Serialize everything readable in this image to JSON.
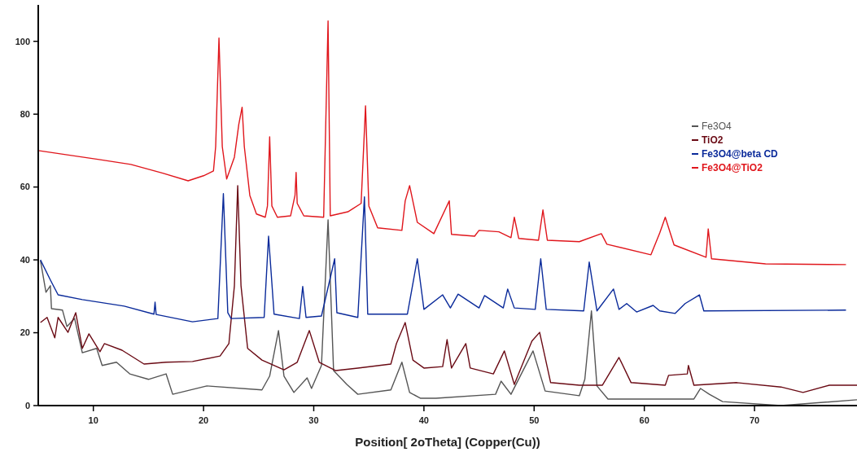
{
  "chart_data": {
    "type": "line",
    "xlabel": "Position[ 2oTheta] (Copper(Cu))",
    "xlim": [
      5,
      79.3
    ],
    "xticks": [
      10,
      20,
      30,
      40,
      50,
      60,
      70
    ],
    "ylim": [
      0,
      110
    ],
    "yticks": [
      0,
      20,
      40,
      60,
      80,
      100
    ],
    "legend": "top right",
    "grid": false,
    "marker": "none",
    "line_style": "solid",
    "series": [
      {
        "name": "Fe3O4",
        "color": "#555555",
        "x": [
          5.2,
          5.7,
          6.1,
          6.2,
          7.2,
          7.6,
          8.3,
          9.0,
          10.3,
          10.8,
          12.1,
          13.3,
          15.0,
          16.6,
          17.2,
          20.3,
          25.3,
          26.0,
          26.8,
          27.3,
          28.2,
          29.4,
          29.8,
          30.7,
          31.3,
          31.8,
          33.0,
          34.0,
          37.0,
          37.5,
          38.0,
          38.7,
          39.7,
          41.1,
          46.5,
          47.0,
          47.9,
          49.9,
          51.0,
          54.1,
          54.6,
          55.2,
          55.7,
          56.7,
          64.5,
          65.1,
          65.9,
          67.1,
          72.4,
          79.3
        ],
        "values": [
          39.8,
          31.1,
          32.9,
          26.6,
          26.2,
          21.7,
          23.9,
          14.5,
          15.7,
          11.0,
          11.9,
          8.7,
          7.2,
          8.7,
          3.1,
          5.4,
          4.3,
          8.1,
          20.6,
          8.1,
          3.6,
          7.6,
          4.7,
          11.0,
          51.0,
          9.6,
          5.8,
          3.1,
          4.3,
          8.1,
          11.9,
          3.6,
          2.0,
          2.0,
          3.1,
          6.7,
          3.1,
          15.0,
          4.0,
          2.7,
          7.2,
          26.0,
          5.4,
          1.8,
          1.8,
          4.7,
          3.1,
          1.1,
          0,
          1.6
        ]
      },
      {
        "name": "TiO2",
        "color": "#6a0a14",
        "x": [
          5.2,
          5.8,
          6.5,
          6.8,
          7.7,
          8.4,
          9.0,
          9.6,
          10.6,
          11.0,
          12.6,
          14.6,
          16.6,
          19.0,
          21.5,
          22.3,
          22.8,
          23.1,
          23.4,
          24.0,
          25.3,
          27.3,
          28.5,
          29.6,
          30.5,
          32.0,
          34.0,
          37.0,
          37.5,
          38.3,
          39.0,
          40.0,
          41.7,
          42.1,
          42.5,
          43.8,
          44.2,
          46.3,
          47.3,
          48.2,
          49.8,
          50.5,
          51.5,
          54.1,
          56.2,
          57.7,
          58.8,
          61.9,
          62.2,
          63.9,
          64.0,
          64.5,
          68.4,
          72.4,
          74.4,
          76.8,
          79.3
        ],
        "values": [
          22.8,
          24.2,
          18.6,
          24.2,
          20.1,
          25.5,
          15.7,
          19.7,
          14.8,
          17.0,
          15.2,
          11.4,
          11.9,
          12.1,
          13.6,
          17.0,
          32.9,
          60.4,
          32.9,
          15.7,
          12.5,
          9.8,
          11.9,
          20.6,
          11.9,
          9.6,
          10.3,
          11.4,
          17.0,
          22.8,
          12.5,
          10.3,
          10.7,
          18.1,
          10.3,
          17.0,
          10.3,
          8.7,
          15.0,
          5.8,
          17.7,
          20.1,
          6.3,
          5.6,
          5.6,
          13.2,
          6.3,
          5.6,
          8.3,
          8.7,
          11.0,
          5.6,
          6.3,
          5.1,
          3.6,
          5.6,
          5.6
        ]
      },
      {
        "name": "Fe3O4@beta CD",
        "color": "#0a2a9a",
        "x": [
          5.2,
          6.1,
          6.8,
          9.0,
          12.8,
          15.5,
          15.6,
          15.7,
          19.0,
          21.3,
          21.8,
          22.2,
          22.5,
          25.5,
          25.9,
          26.4,
          28.7,
          29.0,
          29.3,
          30.7,
          31.9,
          32.1,
          34.0,
          34.6,
          34.9,
          38.5,
          39.4,
          40.0,
          41.7,
          42.4,
          43.1,
          45.0,
          45.5,
          47.2,
          47.6,
          48.2,
          50.1,
          50.6,
          51.1,
          54.5,
          55.0,
          55.7,
          57.2,
          57.7,
          58.4,
          59.3,
          60.8,
          61.4,
          62.8,
          63.7,
          65.0,
          65.4,
          78.3
        ],
        "values": [
          40.0,
          34.5,
          30.4,
          29.1,
          27.3,
          25.1,
          28.4,
          25.0,
          23.0,
          23.9,
          58.2,
          25.5,
          23.9,
          24.2,
          46.5,
          25.1,
          23.9,
          32.7,
          24.2,
          24.6,
          40.3,
          25.5,
          24.2,
          57.3,
          25.1,
          25.1,
          40.3,
          26.4,
          30.4,
          26.8,
          30.6,
          26.8,
          30.2,
          26.8,
          32.0,
          26.8,
          26.4,
          40.3,
          26.4,
          26.0,
          39.4,
          26.0,
          32.0,
          26.4,
          28.0,
          25.7,
          27.5,
          26.0,
          25.3,
          28.0,
          30.4,
          26.0,
          26.2
        ]
      },
      {
        "name": "Fe3O4@TiO2",
        "color": "#e0161c",
        "x": [
          5.0,
          7.5,
          10.4,
          13.4,
          16.3,
          18.6,
          20.0,
          20.9,
          21.1,
          21.4,
          21.7,
          22.1,
          22.8,
          23.2,
          23.5,
          23.7,
          24.2,
          24.8,
          25.6,
          25.8,
          26.0,
          26.2,
          26.7,
          27.9,
          28.3,
          28.4,
          28.5,
          29.1,
          30.9,
          31.3,
          31.5,
          33.1,
          34.3,
          34.7,
          35.0,
          35.8,
          38.0,
          38.3,
          38.7,
          39.4,
          40.9,
          42.3,
          42.5,
          44.6,
          45.0,
          46.8,
          47.9,
          48.2,
          48.6,
          50.4,
          50.8,
          51.2,
          54.1,
          56.1,
          56.6,
          60.6,
          61.4,
          61.9,
          62.7,
          65.6,
          65.8,
          66.1,
          71.0,
          78.3
        ],
        "values": [
          70.0,
          68.9,
          67.6,
          66.2,
          63.8,
          61.7,
          63.1,
          64.4,
          71.1,
          100.9,
          71.1,
          62.2,
          68.2,
          77.2,
          81.9,
          71.1,
          57.7,
          52.6,
          51.7,
          54.8,
          73.8,
          54.8,
          51.7,
          52.1,
          57.7,
          64.0,
          55.5,
          52.1,
          51.7,
          105.6,
          52.1,
          53.2,
          55.5,
          82.3,
          54.8,
          48.8,
          48.1,
          56.2,
          60.4,
          50.3,
          47.2,
          56.2,
          47.0,
          46.5,
          48.1,
          47.7,
          46.1,
          51.7,
          45.9,
          45.4,
          53.7,
          45.4,
          45.0,
          47.2,
          44.3,
          41.4,
          47.4,
          51.7,
          44.1,
          40.7,
          48.5,
          40.3,
          38.9,
          38.7
        ]
      }
    ]
  }
}
